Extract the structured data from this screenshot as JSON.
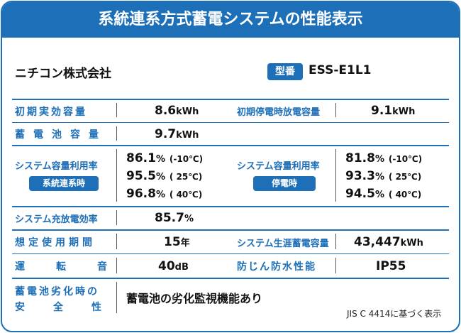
{
  "header": {
    "title": "系統連系方式蓄電システムの性能表示"
  },
  "company": {
    "name": "ニチコン株式会社"
  },
  "model": {
    "badge": "型番",
    "value": "ESS-E1L1"
  },
  "specs": {
    "initial_capacity": {
      "label": "初期実効容量",
      "value": "8.6",
      "unit": "kWh"
    },
    "initial_outage_capacity": {
      "label": "初期停電時放電容量",
      "value": "9.1",
      "unit": "kWh"
    },
    "battery_capacity": {
      "label": "蓄電池容量",
      "value": "9.7",
      "unit": "kWh"
    },
    "util_grid": {
      "label": "システム容量利用率",
      "badge": "系統連系時",
      "rows": [
        {
          "value": "86.1",
          "unit": "%",
          "temp": "(-10℃)"
        },
        {
          "value": "95.5",
          "unit": "%",
          "temp": "( 25℃)"
        },
        {
          "value": "96.8",
          "unit": "%",
          "temp": "( 40℃)"
        }
      ]
    },
    "util_outage": {
      "label": "システム容量利用率",
      "badge": "停電時",
      "rows": [
        {
          "value": "81.8",
          "unit": "%",
          "temp": "(-10℃)"
        },
        {
          "value": "93.3",
          "unit": "%",
          "temp": "( 25℃)"
        },
        {
          "value": "94.5",
          "unit": "%",
          "temp": "( 40℃)"
        }
      ]
    },
    "charge_efficiency": {
      "label": "システム充放電効率",
      "value": "85.7",
      "unit": "%"
    },
    "expected_life": {
      "label": "想定使用期間",
      "value": "15",
      "unit": "年"
    },
    "lifetime_output": {
      "label": "システム生涯蓄電容量",
      "value": "43,447",
      "unit": "kWh"
    },
    "noise": {
      "label": "運転音",
      "value": "40",
      "unit": "dB"
    },
    "waterproof": {
      "label": "防じん防水性能",
      "value": "IP55"
    },
    "degradation": {
      "label_line1": "蓄電池劣化時の",
      "label_line2": "安全性",
      "value": "蓄電池の劣化監視機能あり"
    }
  },
  "footer": {
    "note": "JIS C 4414に基づく表示"
  }
}
